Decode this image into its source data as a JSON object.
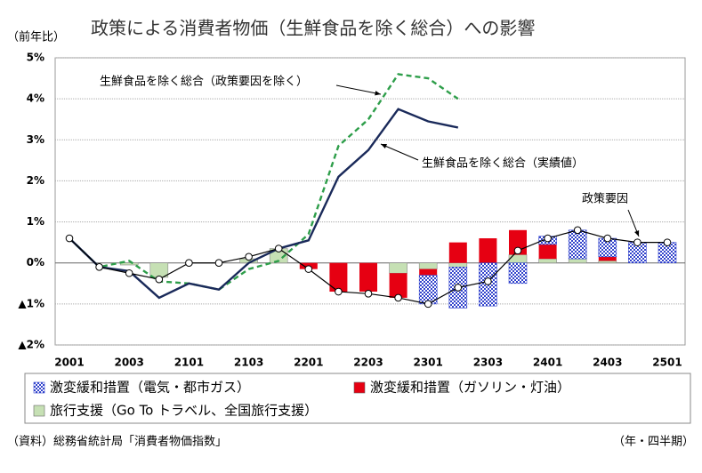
{
  "chart_data": {
    "type": "combo",
    "title": "政策による消費者物価（生鮮食品を除く総合）への影響",
    "y_label": "（前年比）",
    "x_label": "（年・四半期）",
    "source": "（資料）総務省統計局「消費者物価指数」",
    "categories": [
      "2001",
      null,
      "2003",
      null,
      "2101",
      null,
      "2103",
      null,
      "2201",
      null,
      "2203",
      null,
      "2301",
      null,
      "2303",
      null,
      "2401",
      null,
      "2403",
      null,
      "2501"
    ],
    "ylim": [
      -2,
      5
    ],
    "yticks": [
      {
        "value": -2,
        "label": "▲2%"
      },
      {
        "value": -1,
        "label": "▲1%"
      },
      {
        "value": 0,
        "label": "0%"
      },
      {
        "value": 1,
        "label": "1%"
      },
      {
        "value": 2,
        "label": "2%"
      },
      {
        "value": 3,
        "label": "3%"
      },
      {
        "value": 4,
        "label": "4%"
      },
      {
        "value": 5,
        "label": "5%"
      }
    ],
    "grid": true,
    "series": [
      {
        "name": "旅行支援（Go To トラベル、全国旅行支援）",
        "type": "bar",
        "color": "#c6e0b4",
        "values": [
          0,
          0,
          -0.05,
          -0.35,
          0,
          0,
          0.1,
          0.35,
          0,
          0,
          0,
          -0.25,
          -0.15,
          -0.1,
          0,
          0.2,
          0.1,
          0.1,
          0.05,
          0,
          0
        ]
      },
      {
        "name": "激変緩和措置（ガソリン・灯油）",
        "type": "bar",
        "color": "#e60012",
        "values": [
          0,
          0,
          0,
          0,
          0,
          0,
          0,
          0,
          -0.15,
          -0.7,
          -0.7,
          -0.6,
          -0.15,
          0.5,
          0.6,
          0.6,
          0.35,
          0,
          0.1,
          0,
          0
        ]
      },
      {
        "name": "激変緩和措置（電気・都市ガス）",
        "type": "bar",
        "color": "#3344cc",
        "hatch": true,
        "values": [
          0,
          0,
          0,
          0,
          0,
          0,
          0,
          0,
          0,
          0,
          0,
          0,
          -0.7,
          -1.0,
          -1.05,
          -0.5,
          0.2,
          0.7,
          0.45,
          0.5,
          0.5
        ]
      },
      {
        "name": "生鮮食品を除く総合（政策要因を除く）",
        "type": "line",
        "color": "#2e9e4a",
        "dash": true,
        "values": [
          0.6,
          -0.1,
          0.05,
          -0.45,
          -0.5,
          -0.65,
          -0.15,
          0.05,
          0.7,
          2.85,
          3.5,
          4.6,
          4.5,
          4.0,
          null,
          null,
          null,
          null,
          null,
          null,
          null
        ]
      },
      {
        "name": "生鮮食品を除く総合（実績値）",
        "type": "line",
        "color": "#1a2a5a",
        "values": [
          0.6,
          -0.1,
          -0.2,
          -0.85,
          -0.5,
          -0.65,
          0,
          0.35,
          0.55,
          2.1,
          2.75,
          3.75,
          3.45,
          3.3,
          null,
          null,
          null,
          null,
          null,
          null,
          null
        ]
      },
      {
        "name": "政策要因",
        "type": "line",
        "color": "#000000",
        "markers": true,
        "values": [
          0.6,
          -0.1,
          -0.25,
          -0.4,
          0,
          0,
          0.15,
          0.35,
          -0.15,
          -0.7,
          -0.75,
          -0.85,
          -1.0,
          -0.6,
          -0.45,
          0.3,
          0.6,
          0.8,
          0.6,
          0.5,
          0.5
        ]
      }
    ]
  }
}
